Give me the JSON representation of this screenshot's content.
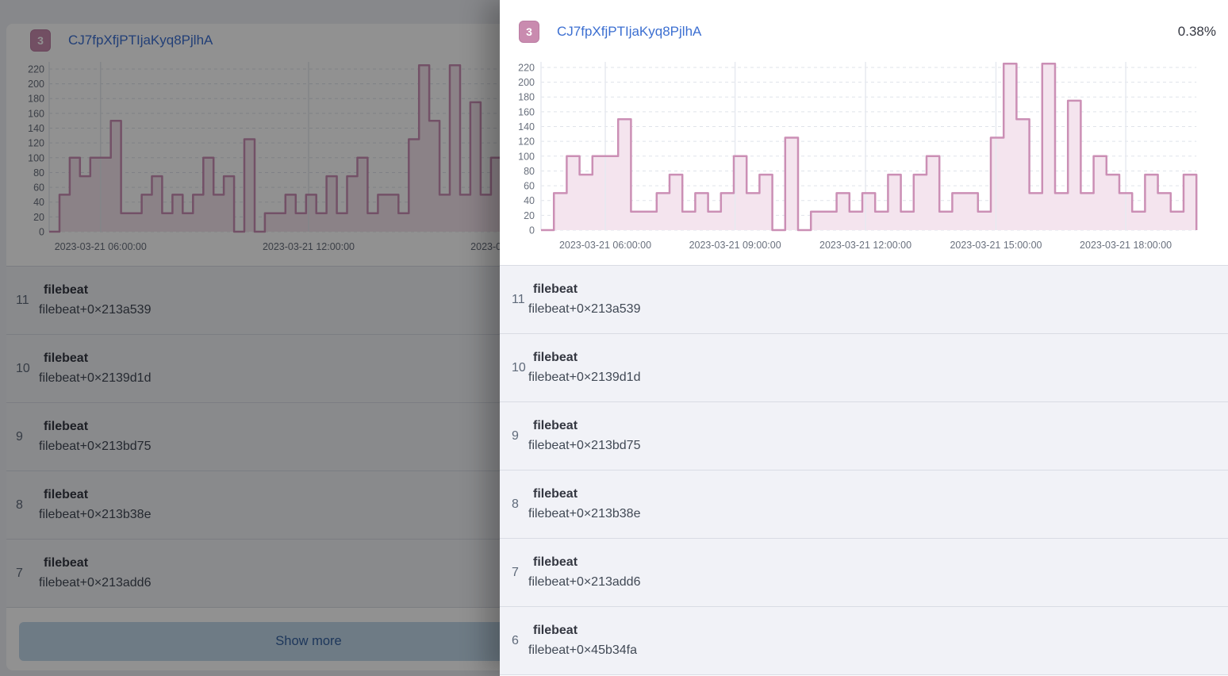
{
  "left_panel": {
    "badge": "3",
    "title": "CJ7fpXfjPTIjaKyq8PjlhA",
    "show_more_label": "Show more",
    "rows": [
      {
        "rank": "11",
        "title": "filebeat",
        "subtitle": "filebeat+0×213a539"
      },
      {
        "rank": "10",
        "title": "filebeat",
        "subtitle": "filebeat+0×2139d1d"
      },
      {
        "rank": "9",
        "title": "filebeat",
        "subtitle": "filebeat+0×213bd75"
      },
      {
        "rank": "8",
        "title": "filebeat",
        "subtitle": "filebeat+0×213b38e"
      },
      {
        "rank": "7",
        "title": "filebeat",
        "subtitle": "filebeat+0×213add6"
      }
    ]
  },
  "flyout": {
    "badge": "3",
    "title": "CJ7fpXfjPTIjaKyq8PjlhA",
    "percent": "0.38%",
    "rows": [
      {
        "rank": "11",
        "title": "filebeat",
        "subtitle": "filebeat+0×213a539"
      },
      {
        "rank": "10",
        "title": "filebeat",
        "subtitle": "filebeat+0×2139d1d"
      },
      {
        "rank": "9",
        "title": "filebeat",
        "subtitle": "filebeat+0×213bd75"
      },
      {
        "rank": "8",
        "title": "filebeat",
        "subtitle": "filebeat+0×213b38e"
      },
      {
        "rank": "7",
        "title": "filebeat",
        "subtitle": "filebeat+0×213add6"
      },
      {
        "rank": "6",
        "title": "filebeat",
        "subtitle": "filebeat+0×45b34fa"
      }
    ]
  },
  "chart_data": {
    "type": "area",
    "title": "CJ7fpXfjPTIjaKyq8PjlhA",
    "xlabel": "",
    "ylabel": "",
    "ylim": [
      0,
      230
    ],
    "grid": true,
    "legend_position": "none",
    "y_ticks": [
      0,
      20,
      40,
      60,
      80,
      100,
      120,
      140,
      160,
      180,
      200,
      220
    ],
    "values": [
      0,
      50,
      100,
      75,
      100,
      100,
      150,
      25,
      25,
      50,
      75,
      25,
      50,
      25,
      50,
      100,
      50,
      75,
      0,
      125,
      0,
      25,
      25,
      50,
      25,
      50,
      25,
      75,
      25,
      75,
      100,
      25,
      50,
      50,
      25,
      125,
      225,
      150,
      50,
      225,
      50,
      175,
      50,
      100,
      75,
      50,
      25,
      75,
      50,
      25,
      75
    ],
    "x_ticks_full": [
      {
        "index": 5.0,
        "label": "2023-03-21 06:00:00"
      },
      {
        "index": 15.1,
        "label": "2023-03-21 09:00:00"
      },
      {
        "index": 25.25,
        "label": "2023-03-21 12:00:00"
      },
      {
        "index": 35.4,
        "label": "2023-03-21 15:00:00"
      },
      {
        "index": 45.5,
        "label": "2023-03-21 18:00:00"
      }
    ],
    "x_ticks_clipped": [
      {
        "index": 5.0,
        "label": "2023-03-21 06:00:00"
      },
      {
        "index": 25.25,
        "label": "2023-03-21 12:00:00"
      },
      {
        "index": 45.5,
        "label": "2023-03-21 18:00:00"
      }
    ]
  },
  "colors": {
    "badge_bg": "#c98baf",
    "badge_border": "#bb7da3",
    "link_blue": "#3c6fd1",
    "chart_stroke": "#cb8fb5",
    "chart_fill": "#f4e4ee",
    "grid_dashed": "#dfe3ea",
    "grid_vertical": "#e7eaf0",
    "axis_text": "#69707d",
    "row_bg": "#f1f2f7",
    "separator": "#d9dce4",
    "page_bg": "#eef0f4",
    "text_dark": "#343741",
    "button_bg": "#c2d8ea",
    "button_text": "#3562a1",
    "backdrop": "rgba(0,0,0,0.43)"
  }
}
